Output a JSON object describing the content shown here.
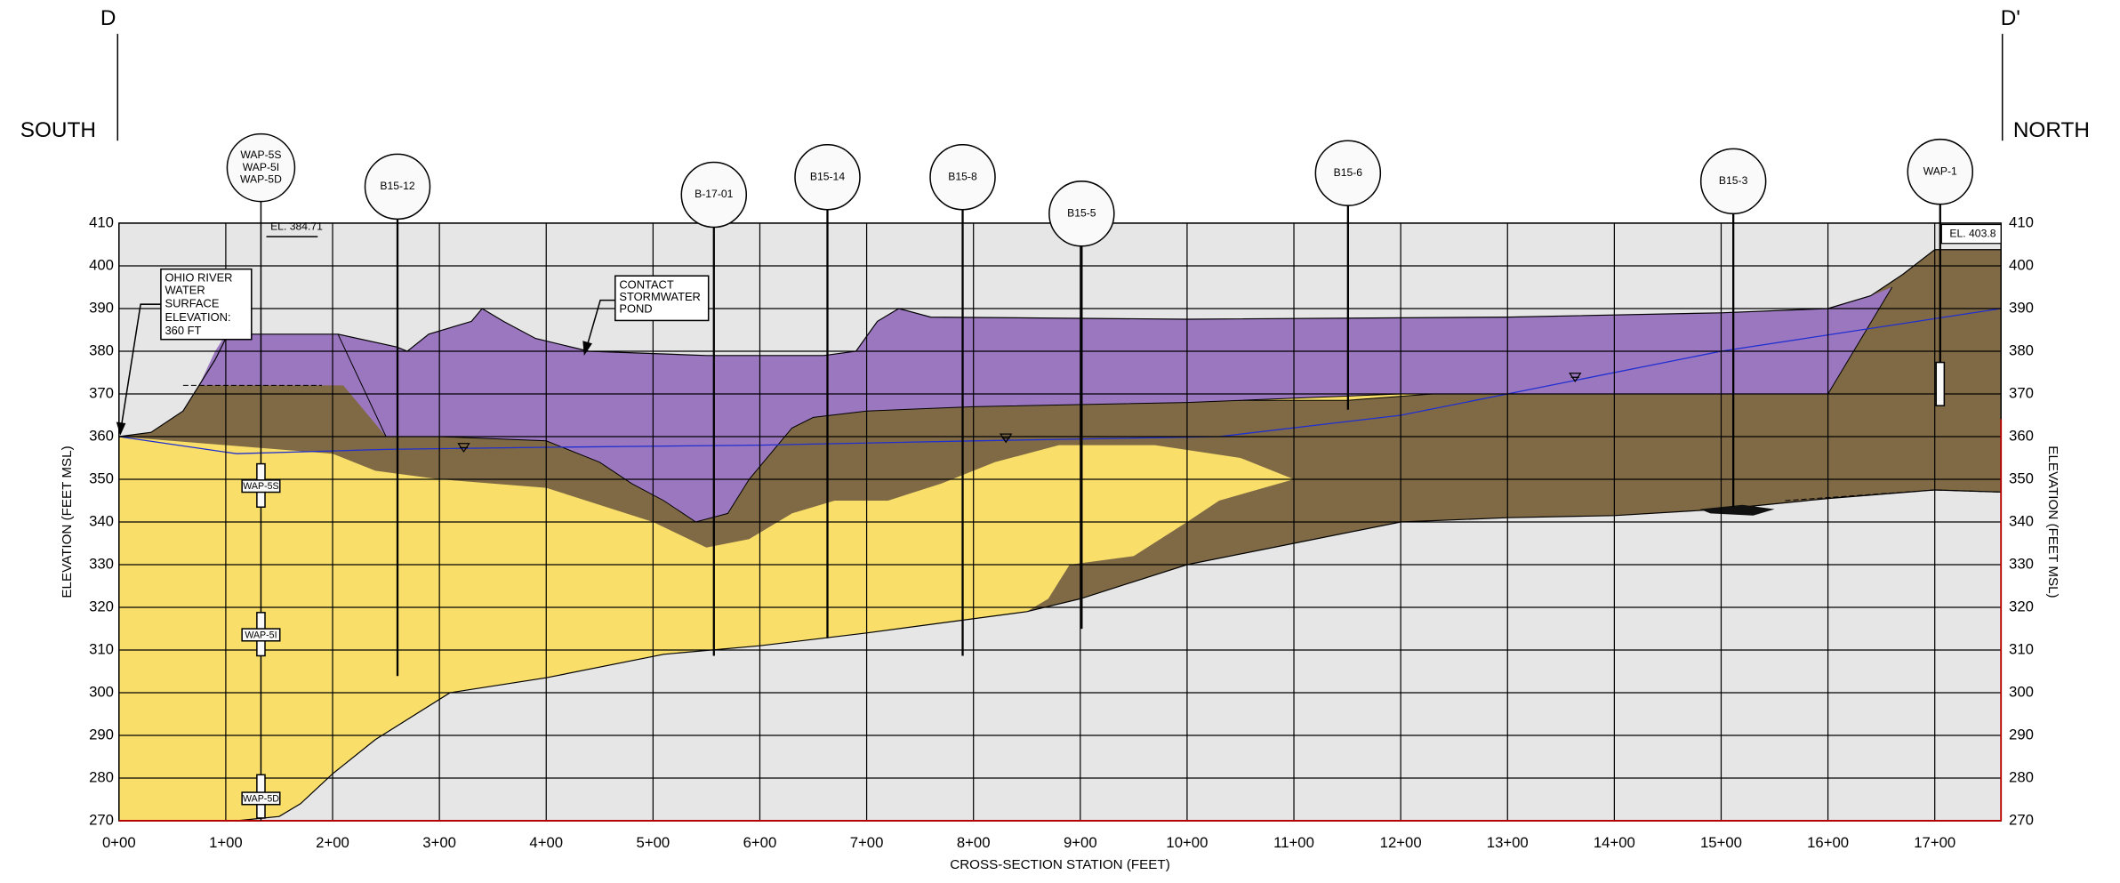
{
  "section": {
    "left": "D",
    "right": "D'",
    "left_direction": "SOUTH",
    "right_direction": "NORTH"
  },
  "axes": {
    "y_label": "ELEVATION (FEET MSL)",
    "y2_label": "ELEVATION (FEET MSL)",
    "x_label": "CROSS-SECTION STATION (FEET)",
    "elevation_ticks": [
      410,
      400,
      390,
      380,
      370,
      360,
      350,
      340,
      330,
      320,
      310,
      300,
      290,
      280,
      270
    ],
    "station_ticks": [
      "0+00",
      "1+00",
      "2+00",
      "3+00",
      "4+00",
      "5+00",
      "6+00",
      "7+00",
      "8+00",
      "9+00",
      "10+00",
      "11+00",
      "12+00",
      "13+00",
      "14+00",
      "15+00",
      "16+00",
      "17+00"
    ]
  },
  "wells": [
    {
      "labels": [
        "WAP-5S",
        "WAP-5I",
        "WAP-5D"
      ]
    },
    {
      "label": "B15-12"
    },
    {
      "label": "B-17-01"
    },
    {
      "label": "B15-14"
    },
    {
      "label": "B15-8"
    },
    {
      "label": "B15-5"
    },
    {
      "label": "B15-6"
    },
    {
      "label": "B15-3"
    },
    {
      "label": "WAP-1"
    }
  ],
  "screen_labels": [
    "WAP-5S",
    "WAP-5I",
    "WAP-5D"
  ],
  "callouts": {
    "el_wap5": "EL. 384.71",
    "el_wap1": "EL. 403.8",
    "river": [
      "OHIO RIVER",
      "WATER",
      "SURFACE",
      "ELEVATION:",
      "360 FT"
    ],
    "pond": [
      "CONTACT",
      "STORMWATER",
      "POND"
    ]
  }
}
